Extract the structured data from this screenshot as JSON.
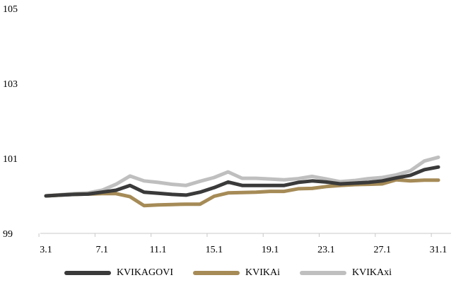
{
  "chart_data": {
    "type": "line",
    "title": "",
    "xlabel": "",
    "ylabel": "",
    "ylim": [
      99,
      105
    ],
    "yticks": [
      "99",
      "101",
      "103",
      "105"
    ],
    "x": [
      3,
      4,
      5,
      6,
      7,
      8,
      9,
      10,
      11,
      12,
      13,
      14,
      15,
      16,
      17,
      18,
      19,
      20,
      21,
      22,
      23,
      24,
      25,
      26,
      27,
      28,
      29,
      30,
      31
    ],
    "xticks": [
      {
        "x": 3,
        "label": "3.1"
      },
      {
        "x": 7,
        "label": "7.1"
      },
      {
        "x": 11,
        "label": "11.1"
      },
      {
        "x": 15,
        "label": "15.1"
      },
      {
        "x": 19,
        "label": "19.1"
      },
      {
        "x": 23,
        "label": "23.1"
      },
      {
        "x": 27,
        "label": "27.1"
      },
      {
        "x": 31,
        "label": "31.1"
      }
    ],
    "grid": false,
    "legend": "bottom",
    "series": [
      {
        "name": "KVIKAGOVI",
        "color": "#3a3a3a",
        "points": [
          [
            3,
            100.0
          ],
          [
            4,
            100.02
          ],
          [
            5,
            100.04
          ],
          [
            6,
            100.05
          ],
          [
            7,
            100.1
          ],
          [
            8,
            100.15
          ],
          [
            9,
            100.28
          ],
          [
            10,
            100.1
          ],
          [
            11,
            100.07
          ],
          [
            12,
            100.04
          ],
          [
            13,
            100.02
          ],
          [
            14,
            100.1
          ],
          [
            15,
            100.22
          ],
          [
            16,
            100.37
          ],
          [
            17,
            100.28
          ],
          [
            18,
            100.28
          ],
          [
            19,
            100.28
          ],
          [
            20,
            100.28
          ],
          [
            21,
            100.36
          ],
          [
            22,
            100.4
          ],
          [
            23,
            100.37
          ],
          [
            24,
            100.32
          ],
          [
            25,
            100.34
          ],
          [
            26,
            100.36
          ],
          [
            27,
            100.4
          ],
          [
            28,
            100.48
          ],
          [
            29,
            100.55
          ],
          [
            30,
            100.7
          ],
          [
            31,
            100.77
          ]
        ]
      },
      {
        "name": "KVIKAi",
        "color": "#a68b57",
        "points": [
          [
            3,
            100.0
          ],
          [
            4,
            100.02
          ],
          [
            5,
            100.04
          ],
          [
            6,
            100.05
          ],
          [
            7,
            100.06
          ],
          [
            8,
            100.06
          ],
          [
            9,
            99.98
          ],
          [
            10,
            99.74
          ],
          [
            11,
            99.76
          ],
          [
            12,
            99.77
          ],
          [
            13,
            99.78
          ],
          [
            14,
            99.78
          ],
          [
            15,
            99.99
          ],
          [
            16,
            100.08
          ],
          [
            17,
            100.09
          ],
          [
            18,
            100.1
          ],
          [
            19,
            100.12
          ],
          [
            20,
            100.12
          ],
          [
            21,
            100.19
          ],
          [
            22,
            100.2
          ],
          [
            23,
            100.25
          ],
          [
            24,
            100.28
          ],
          [
            25,
            100.3
          ],
          [
            26,
            100.31
          ],
          [
            27,
            100.32
          ],
          [
            28,
            100.43
          ],
          [
            29,
            100.4
          ],
          [
            30,
            100.42
          ],
          [
            31,
            100.42
          ]
        ]
      },
      {
        "name": "KVIKAxi",
        "color": "#bfbfbf",
        "points": [
          [
            3,
            100.0
          ],
          [
            4,
            100.03
          ],
          [
            5,
            100.06
          ],
          [
            6,
            100.08
          ],
          [
            7,
            100.15
          ],
          [
            8,
            100.31
          ],
          [
            9,
            100.53
          ],
          [
            10,
            100.4
          ],
          [
            11,
            100.36
          ],
          [
            12,
            100.31
          ],
          [
            13,
            100.28
          ],
          [
            14,
            100.39
          ],
          [
            15,
            100.49
          ],
          [
            16,
            100.64
          ],
          [
            17,
            100.47
          ],
          [
            18,
            100.47
          ],
          [
            19,
            100.45
          ],
          [
            20,
            100.43
          ],
          [
            21,
            100.46
          ],
          [
            22,
            100.52
          ],
          [
            23,
            100.45
          ],
          [
            24,
            100.38
          ],
          [
            25,
            100.41
          ],
          [
            26,
            100.46
          ],
          [
            27,
            100.49
          ],
          [
            28,
            100.56
          ],
          [
            29,
            100.67
          ],
          [
            30,
            100.93
          ],
          [
            31,
            101.03
          ]
        ]
      }
    ]
  }
}
